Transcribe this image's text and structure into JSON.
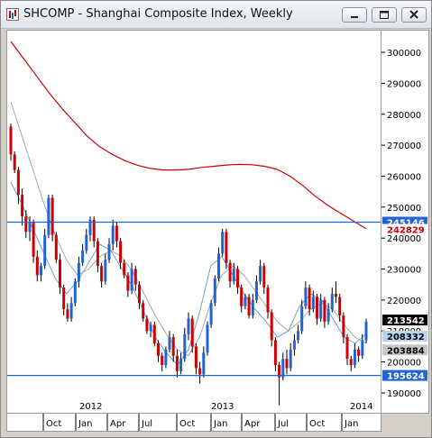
{
  "window": {
    "title": "SHCOMP - Shanghai Composite Index, Weekly",
    "icons": [
      "chart-app-icon",
      "minimize-icon",
      "restore-icon",
      "close-icon"
    ]
  },
  "chart_data": {
    "type": "candlestick",
    "title": "SHCOMP - Shanghai Composite Index, Weekly",
    "ylim": [
      183000,
      307000
    ],
    "y_ticks": [
      190000,
      200000,
      210000,
      220000,
      230000,
      240000,
      250000,
      260000,
      270000,
      280000,
      290000,
      300000
    ],
    "y_tick_labels": [
      "190000",
      "200000",
      "210000",
      "220000",
      "230000",
      "240000",
      "250000",
      "260000",
      "270000",
      "280000",
      "290000",
      "300000"
    ],
    "x_month_labels": [
      "Oct",
      "Jan",
      "Apr",
      "Jul",
      "Oct",
      "Jan",
      "Apr",
      "Jul",
      "Oct",
      "Jan"
    ],
    "x_year_labels": [
      "2012",
      "2013",
      "2014"
    ],
    "horizontal_lines": [
      {
        "value": 245146,
        "label": "245146",
        "color": "#1e64d2"
      },
      {
        "value": 195624,
        "label": "195624",
        "color": "#1e64d2"
      }
    ],
    "price_tags": [
      {
        "value": 242829,
        "label": "242829",
        "bg": "#ffffff",
        "fg": "#d00000"
      },
      {
        "value": 213542,
        "label": "213542",
        "bg": "#000000",
        "fg": "#ffffff"
      },
      {
        "value": 208332,
        "label": "208332",
        "bg": "#b8d4ee",
        "fg": "#000000"
      },
      {
        "value": 203884,
        "label": "203884",
        "bg": "#c8c8c8",
        "fg": "#000000"
      }
    ],
    "series": [
      {
        "name": "",
        "color": "#d00000",
        "y": [
          303500,
          298000,
          292500,
          287000,
          282000,
          277500,
          273000,
          269500,
          267000,
          265000,
          263500,
          262500,
          262000,
          262000,
          262200,
          262800,
          263200,
          263600,
          263800,
          263700,
          263200,
          262200,
          260000,
          257000,
          253500,
          250500,
          248000,
          245500,
          243000
        ]
      },
      {
        "name": "",
        "color": "#5b9bd5",
        "y": [
          258000,
          251000,
          243000,
          235000,
          227000,
          222000,
          226000,
          232000,
          238000,
          236000,
          230000,
          224000,
          216000,
          208000,
          203000,
          199000,
          204000,
          216000,
          231000,
          234000,
          228000,
          222000,
          217000,
          213000,
          208000,
          210000,
          218000,
          222000,
          220000,
          214000,
          208000,
          206000,
          209000
        ]
      },
      {
        "name": "",
        "color": "#9aa0a6",
        "y": [
          284000,
          273000,
          262000,
          251000,
          241000,
          233000,
          228000,
          230000,
          234000,
          236000,
          234000,
          229000,
          222000,
          215000,
          209000,
          204000,
          202000,
          208000,
          219000,
          228000,
          231000,
          228000,
          223000,
          218000,
          213000,
          210000,
          213000,
          217000,
          219000,
          217000,
          212000,
          208000,
          206000
        ]
      }
    ],
    "candles": [
      [
        276000,
        277000,
        265000,
        267000
      ],
      [
        267000,
        268000,
        261000,
        262000
      ],
      [
        262000,
        263000,
        251000,
        254000
      ],
      [
        254000,
        256000,
        244000,
        247000
      ],
      [
        247000,
        249000,
        240000,
        242000
      ],
      [
        242000,
        247000,
        239000,
        245000
      ],
      [
        245000,
        246000,
        232000,
        234000
      ],
      [
        234000,
        236000,
        226000,
        228000
      ],
      [
        228000,
        232000,
        226000,
        231000
      ],
      [
        231000,
        243000,
        230000,
        241000
      ],
      [
        241000,
        254000,
        240000,
        253000
      ],
      [
        253000,
        254000,
        239000,
        241000
      ],
      [
        241000,
        242000,
        232000,
        233000
      ],
      [
        233000,
        235000,
        222000,
        224000
      ],
      [
        224000,
        225000,
        215000,
        217000
      ],
      [
        217000,
        219000,
        213000,
        214000
      ],
      [
        214000,
        221000,
        213000,
        219000
      ],
      [
        219000,
        227000,
        218000,
        226000
      ],
      [
        226000,
        234000,
        224000,
        232000
      ],
      [
        232000,
        238000,
        231000,
        236000
      ],
      [
        236000,
        243000,
        235000,
        241000
      ],
      [
        241000,
        247000,
        239000,
        246000
      ],
      [
        246000,
        247000,
        237000,
        239000
      ],
      [
        239000,
        240000,
        229000,
        231000
      ],
      [
        231000,
        232000,
        224000,
        226000
      ],
      [
        226000,
        235000,
        225000,
        233000
      ],
      [
        233000,
        240000,
        232000,
        238000
      ],
      [
        238000,
        246000,
        236000,
        244000
      ],
      [
        244000,
        245000,
        237000,
        239000
      ],
      [
        239000,
        240000,
        230000,
        232000
      ],
      [
        232000,
        233000,
        227000,
        228000
      ],
      [
        228000,
        229000,
        221000,
        223000
      ],
      [
        223000,
        232000,
        222000,
        230000
      ],
      [
        230000,
        231000,
        223000,
        225000
      ],
      [
        225000,
        226000,
        217000,
        219000
      ],
      [
        219000,
        220000,
        213000,
        214000
      ],
      [
        214000,
        215000,
        209000,
        210000
      ],
      [
        210000,
        213000,
        208000,
        212000
      ],
      [
        212000,
        213000,
        205000,
        206000
      ],
      [
        206000,
        207000,
        200000,
        202000
      ],
      [
        202000,
        203000,
        197000,
        199000
      ],
      [
        199000,
        205000,
        198000,
        204000
      ],
      [
        204000,
        210000,
        203000,
        208000
      ],
      [
        208000,
        209000,
        200000,
        202000
      ],
      [
        202000,
        204000,
        195000,
        197000
      ],
      [
        197000,
        203000,
        196000,
        201000
      ],
      [
        201000,
        211000,
        200000,
        209000
      ],
      [
        209000,
        216000,
        207000,
        214000
      ],
      [
        214000,
        215000,
        203000,
        205000
      ],
      [
        205000,
        206000,
        196000,
        198000
      ],
      [
        198000,
        200000,
        193000,
        196000
      ],
      [
        196000,
        205000,
        195000,
        203000
      ],
      [
        203000,
        213000,
        202000,
        212000
      ],
      [
        212000,
        220000,
        211000,
        219000
      ],
      [
        219000,
        228000,
        218000,
        227000
      ],
      [
        227000,
        237000,
        226000,
        235000
      ],
      [
        235000,
        243000,
        234000,
        242000
      ],
      [
        242000,
        243000,
        230000,
        232000
      ],
      [
        232000,
        233000,
        224000,
        226000
      ],
      [
        226000,
        232000,
        225000,
        230000
      ],
      [
        230000,
        231000,
        222000,
        224000
      ],
      [
        224000,
        225000,
        216000,
        218000
      ],
      [
        218000,
        222000,
        217000,
        221000
      ],
      [
        221000,
        222000,
        214000,
        215000
      ],
      [
        215000,
        222000,
        214000,
        220000
      ],
      [
        220000,
        228000,
        219000,
        226000
      ],
      [
        226000,
        233000,
        225000,
        231000
      ],
      [
        231000,
        232000,
        222000,
        224000
      ],
      [
        224000,
        225000,
        214000,
        216000
      ],
      [
        216000,
        217000,
        205000,
        207000
      ],
      [
        207000,
        208000,
        197000,
        199000
      ],
      [
        199000,
        200000,
        186000,
        195000
      ],
      [
        195000,
        203000,
        194000,
        201000
      ],
      [
        201000,
        204000,
        196000,
        198000
      ],
      [
        198000,
        206000,
        197000,
        204000
      ],
      [
        204000,
        209000,
        202000,
        207000
      ],
      [
        207000,
        212000,
        206000,
        210000
      ],
      [
        210000,
        220000,
        209000,
        218000
      ],
      [
        218000,
        226000,
        217000,
        224000
      ],
      [
        224000,
        225000,
        215000,
        217000
      ],
      [
        217000,
        223000,
        216000,
        221000
      ],
      [
        221000,
        222000,
        212000,
        214000
      ],
      [
        214000,
        222000,
        213000,
        220000
      ],
      [
        220000,
        221000,
        211000,
        213000
      ],
      [
        213000,
        219000,
        212000,
        217000
      ],
      [
        217000,
        224000,
        216000,
        222000
      ],
      [
        222000,
        226000,
        219000,
        221000
      ],
      [
        221000,
        222000,
        213000,
        215000
      ],
      [
        215000,
        216000,
        206000,
        208000
      ],
      [
        208000,
        209000,
        199000,
        201000
      ],
      [
        201000,
        202000,
        197000,
        199000
      ],
      [
        199000,
        206000,
        198000,
        204000
      ],
      [
        204000,
        205000,
        200000,
        202000
      ],
      [
        202000,
        209000,
        201000,
        207000
      ],
      [
        207000,
        214000,
        206000,
        213000
      ]
    ]
  }
}
